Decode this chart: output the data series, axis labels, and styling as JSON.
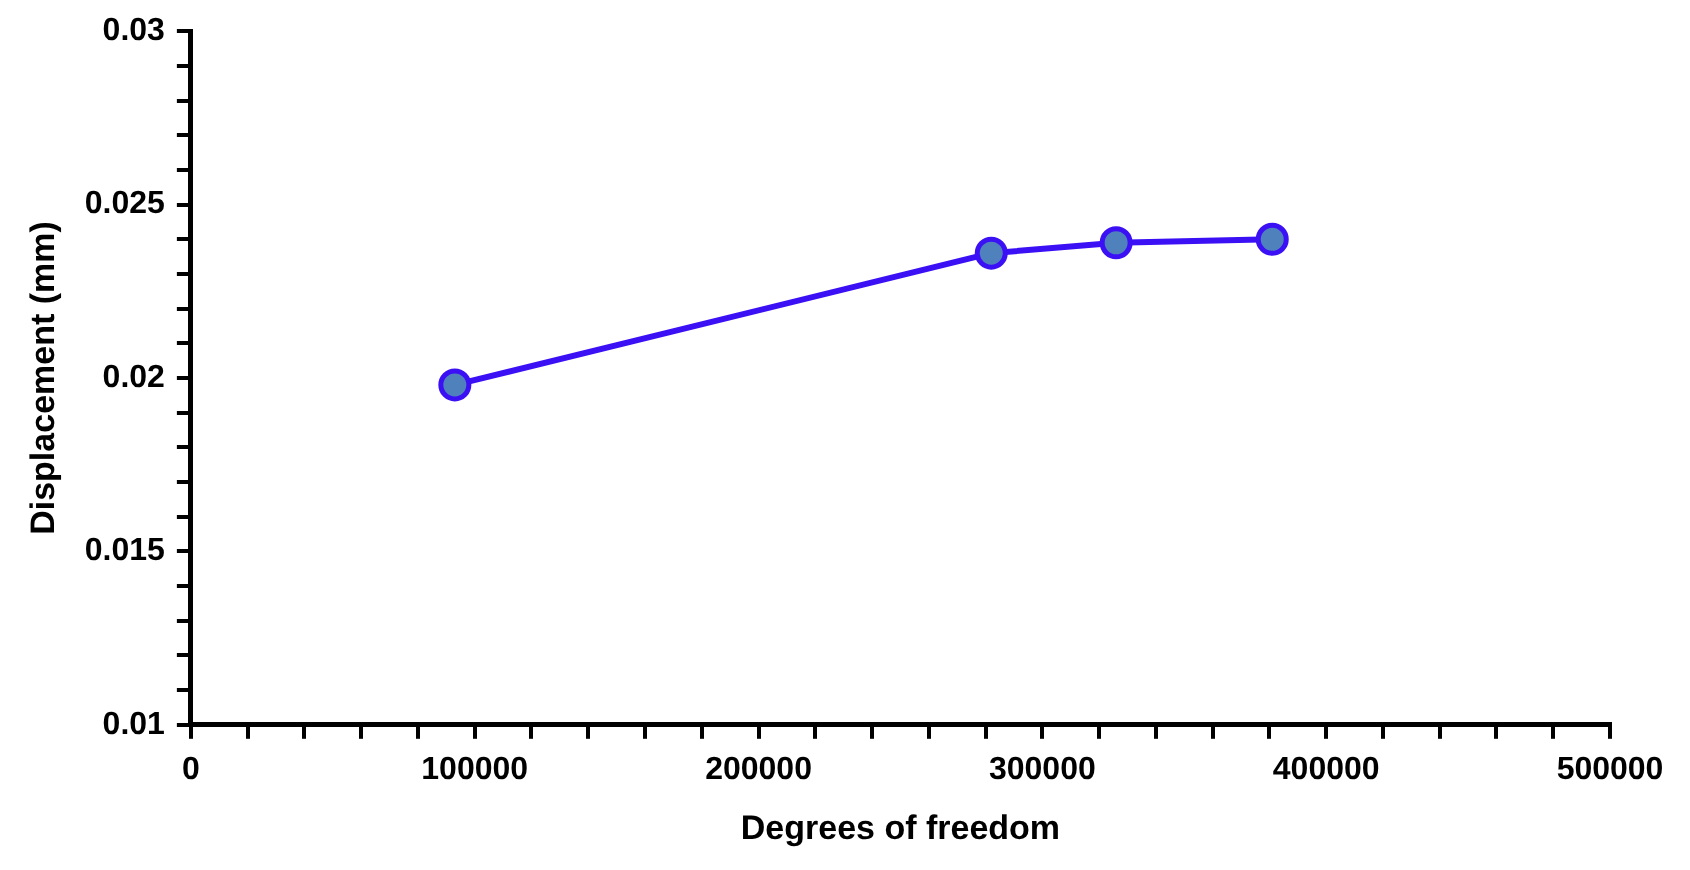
{
  "chart_data": {
    "type": "line",
    "xlabel": "Degrees of freedom",
    "ylabel": "Displacement (mm)",
    "x": [
      93000,
      282000,
      326000,
      381000
    ],
    "series": [
      {
        "color": "#3b10f5",
        "values": [
          0.0198,
          0.0236,
          0.0239,
          0.024
        ]
      }
    ],
    "xlim": [
      0,
      500000
    ],
    "xticks": [
      0,
      {
        "value": 20000,
        "label": null
      },
      {
        "value": 40000,
        "label": null
      },
      {
        "value": 60000,
        "label": null
      },
      {
        "value": 80000,
        "label": null
      },
      100000,
      {
        "value": 120000,
        "label": null
      },
      {
        "value": 140000,
        "label": null
      },
      {
        "value": 160000,
        "label": null
      },
      {
        "value": 180000,
        "label": null
      },
      200000,
      {
        "value": 220000,
        "label": null
      },
      {
        "value": 240000,
        "label": null
      },
      {
        "value": 260000,
        "label": null
      },
      {
        "value": 280000,
        "label": null
      },
      300000,
      {
        "value": 320000,
        "label": null
      },
      {
        "value": 340000,
        "label": null
      },
      {
        "value": 360000,
        "label": null
      },
      {
        "value": 380000,
        "label": null
      },
      400000,
      {
        "value": 420000,
        "label": null
      },
      {
        "value": 440000,
        "label": null
      },
      {
        "value": 460000,
        "label": null
      },
      {
        "value": 480000,
        "label": null
      },
      500000
    ],
    "ylim": [
      0.01,
      0.03
    ],
    "yticks": [
      0.01,
      {
        "value": 0.011,
        "label": null
      },
      {
        "value": 0.012,
        "label": null
      },
      {
        "value": 0.013,
        "label": null
      },
      {
        "value": 0.014,
        "label": null
      },
      0.015,
      {
        "value": 0.016,
        "label": null
      },
      {
        "value": 0.017,
        "label": null
      },
      {
        "value": 0.018,
        "label": null
      },
      {
        "value": 0.019,
        "label": null
      },
      0.02,
      {
        "value": 0.021,
        "label": null
      },
      {
        "value": 0.022,
        "label": null
      },
      {
        "value": 0.023,
        "label": null
      },
      {
        "value": 0.024,
        "label": null
      },
      0.025,
      {
        "value": 0.026,
        "label": null
      },
      {
        "value": 0.027,
        "label": null
      },
      {
        "value": 0.028,
        "label": null
      },
      {
        "value": 0.029,
        "label": null
      },
      0.03
    ],
    "grid": false,
    "legend": false,
    "marker": "circle",
    "line_style": "solid"
  }
}
